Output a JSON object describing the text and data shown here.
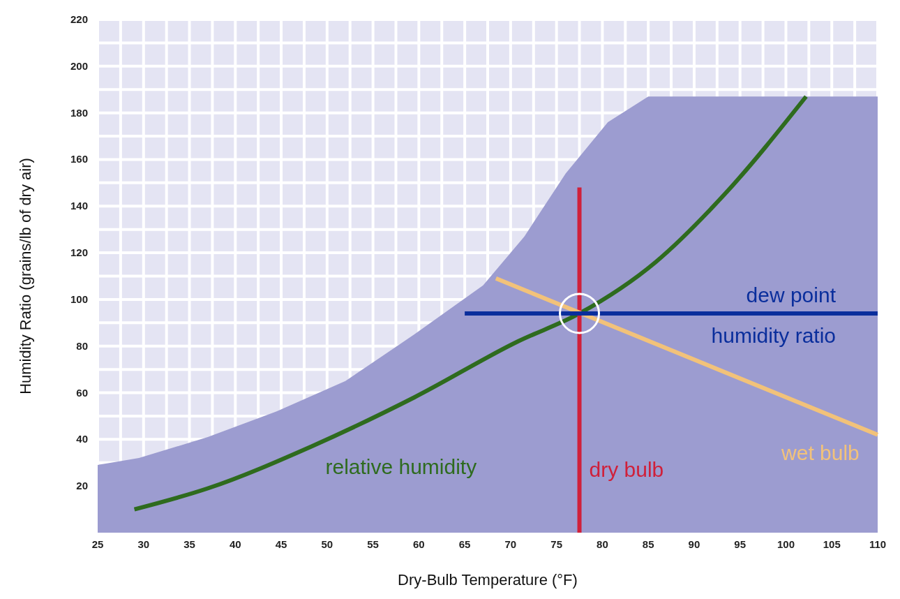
{
  "chart_data": {
    "type": "line",
    "xlabel": "Dry-Bulb Temperature (°F)",
    "ylabel": "Humidity Ratio (grains/lb of dry air)",
    "xlim": [
      25,
      110
    ],
    "ylim": [
      0,
      220
    ],
    "xticks": [
      25,
      {
        "value": 27.5,
        "label": null
      },
      30,
      {
        "value": 32.5,
        "label": null
      },
      35,
      {
        "value": 37.5,
        "label": null
      },
      40,
      {
        "value": 42.5,
        "label": null
      },
      45,
      {
        "value": 47.5,
        "label": null
      },
      50,
      {
        "value": 52.5,
        "label": null
      },
      55,
      {
        "value": 57.5,
        "label": null
      },
      60,
      {
        "value": 62.5,
        "label": null
      },
      65,
      {
        "value": 67.5,
        "label": null
      },
      70,
      {
        "value": 72.5,
        "label": null
      },
      75,
      {
        "value": 77.5,
        "label": null
      },
      80,
      {
        "value": 82.5,
        "label": null
      },
      85,
      {
        "value": 87.5,
        "label": null
      },
      90,
      {
        "value": 92.5,
        "label": null
      },
      95,
      {
        "value": 97.5,
        "label": null
      },
      100,
      {
        "value": 102.5,
        "label": null
      },
      105,
      {
        "value": 107.5,
        "label": null
      },
      110
    ],
    "yticks": [
      20,
      {
        "value": 30,
        "label": null
      },
      40,
      {
        "value": 50,
        "label": null
      },
      60,
      {
        "value": 70,
        "label": null
      },
      80,
      {
        "value": 90,
        "label": null
      },
      100,
      {
        "value": 110,
        "label": null
      },
      120,
      {
        "value": 130,
        "label": null
      },
      140,
      {
        "value": 150,
        "label": null
      },
      160,
      {
        "value": 170,
        "label": null
      },
      180,
      {
        "value": 190,
        "label": null
      },
      200,
      {
        "value": 210,
        "label": null
      },
      220
    ],
    "grid": true,
    "series": [
      {
        "type": "area",
        "color": "#9c9cd0",
        "x": [
          25,
          29.5,
          37,
          44.5,
          52,
          59.5,
          67,
          71.5,
          76,
          80.6,
          85,
          110
        ],
        "values": [
          29,
          32,
          41,
          52,
          65,
          85,
          106,
          127,
          154,
          176,
          187,
          187
        ]
      },
      {
        "name": "relative humidity",
        "color": "#2e6b1e",
        "x": [
          29,
          37,
          48.3,
          59.5,
          70.8,
          77.5,
          85.8,
          93.3,
          102.2
        ],
        "values": [
          10,
          19,
          37,
          58,
          82,
          94,
          116,
          145,
          187
        ]
      },
      {
        "name": "dry bulb",
        "color": "#d0203a",
        "x": [
          77.5,
          77.5
        ],
        "values": [
          0,
          148
        ]
      },
      {
        "name": "wet bulb",
        "color": "#f2c27a",
        "x": [
          68.4,
          110
        ],
        "values": [
          109,
          42
        ]
      },
      {
        "name": "dew point",
        "color": "#0a2e9c",
        "x": [
          65,
          110
        ],
        "values": [
          94,
          94
        ]
      },
      {
        "type": "scatter",
        "marker": "circle",
        "color": "#ffffff",
        "x": [
          77.5
        ],
        "values": [
          94
        ]
      }
    ],
    "annotations": [
      "humidity ratio"
    ]
  }
}
